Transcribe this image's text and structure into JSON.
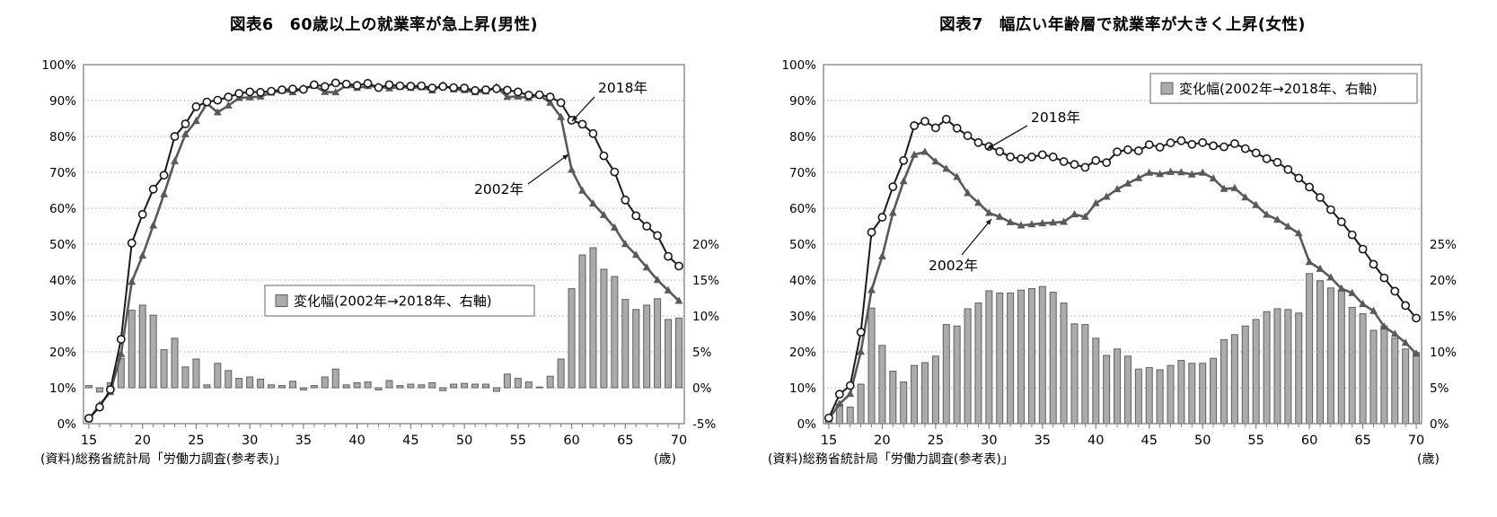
{
  "colors": {
    "line_2018": "#1a1a1a",
    "marker_2018_fill": "#ffffff",
    "line_2002": "#595959",
    "bar_fill": "#ababab",
    "bar_border": "#5f5f5f",
    "grid": "#a6a6a6",
    "plot_border": "#7f7f7f"
  },
  "charts": [
    {
      "id": "men",
      "title": "図表6　60歳以上の就業率が急上昇(男性)",
      "source": "(資料)総務省統計局「労働力調査(参考表)」",
      "x_unit": "(歳)",
      "legend": {
        "label": "変化幅(2002年→2018年、右軸)",
        "icon": "gray-square-swatch"
      },
      "annotations": [
        {
          "label": "2018年",
          "target_series": "2018年"
        },
        {
          "label": "2002年",
          "target_series": "2002年"
        }
      ],
      "axes": {
        "left": {
          "values": [
            0,
            10,
            20,
            30,
            40,
            50,
            60,
            70,
            80,
            90,
            100
          ],
          "labels": [
            "0%",
            "10%",
            "20%",
            "30%",
            "40%",
            "50%",
            "60%",
            "70%",
            "80%",
            "90%",
            "100%"
          ]
        },
        "right": {
          "values": [
            -5,
            0,
            5,
            10,
            15,
            20
          ],
          "labels": [
            "-5%",
            "0%",
            "5%",
            "10%",
            "15%",
            "20%"
          ]
        },
        "x": {
          "ticks": [
            15,
            20,
            25,
            30,
            35,
            40,
            45,
            50,
            55,
            60,
            65,
            70
          ]
        }
      },
      "chart_data": {
        "type": "line+bar",
        "x_label": "age",
        "x_min": 15,
        "x_max": 70,
        "x": [
          15,
          16,
          17,
          18,
          19,
          20,
          21,
          22,
          23,
          24,
          25,
          26,
          27,
          28,
          29,
          30,
          31,
          32,
          33,
          34,
          35,
          36,
          37,
          38,
          39,
          40,
          41,
          42,
          43,
          44,
          45,
          46,
          47,
          48,
          49,
          50,
          51,
          52,
          53,
          54,
          55,
          56,
          57,
          58,
          59,
          60,
          61,
          62,
          63,
          64,
          65,
          66,
          67,
          68,
          69,
          70
        ],
        "left_axis_range": [
          0,
          100
        ],
        "right_axis_range": [
          -5,
          20
        ],
        "grid": "dotted-horizontal",
        "legend_position": "inside-middle-left",
        "series": [
          {
            "name": "2018年",
            "type": "line",
            "marker": "circle",
            "axis": "left",
            "values": [
              1.5,
              4.6,
              9.5,
              23.5,
              50.3,
              58.3,
              65.3,
              69.2,
              80.0,
              83.5,
              88.3,
              89.6,
              90.1,
              91.0,
              92.0,
              92.4,
              92.3,
              92.6,
              93.0,
              93.2,
              93.1,
              94.4,
              93.9,
              94.9,
              94.6,
              94.2,
              94.8,
              93.6,
              94.4,
              94.1,
              94.0,
              94.1,
              93.5,
              93.9,
              93.6,
              93.5,
              92.8,
              93.0,
              93.3,
              92.9,
              92.4,
              91.5,
              91.6,
              91.0,
              89.4,
              84.5,
              83.4,
              80.8,
              74.6,
              70.1,
              62.3,
              57.9,
              55.0,
              52.4,
              46.6,
              43.9
            ]
          },
          {
            "name": "2002年",
            "type": "line",
            "marker": "triangle",
            "axis": "left",
            "values": [
              1.2,
              5.2,
              8.8,
              19.4,
              39.5,
              46.8,
              55.2,
              63.9,
              73.1,
              80.6,
              84.3,
              89.2,
              86.7,
              88.6,
              90.7,
              90.9,
              91.1,
              92.2,
              92.7,
              92.3,
              93.4,
              94.1,
              92.4,
              92.3,
              94.2,
              93.5,
              94.0,
              93.9,
              93.4,
              93.8,
              93.5,
              93.7,
              92.8,
              94.3,
              93.1,
              92.9,
              92.3,
              92.5,
              93.8,
              91.0,
              91.1,
              90.7,
              91.5,
              89.4,
              85.4,
              70.7,
              64.9,
              61.3,
              58.1,
              54.6,
              50.0,
              47.0,
              43.5,
              40.0,
              37.1,
              34.2
            ]
          },
          {
            "name": "変化幅(2002年→2018年、右軸)",
            "type": "bar",
            "axis": "right",
            "values": [
              0.3,
              -0.6,
              0.7,
              4.1,
              10.8,
              11.5,
              10.1,
              5.3,
              6.9,
              2.9,
              4.0,
              0.4,
              3.4,
              2.4,
              1.3,
              1.5,
              1.2,
              0.4,
              0.3,
              0.9,
              -0.3,
              0.3,
              1.5,
              2.6,
              0.4,
              0.7,
              0.8,
              -0.3,
              1.0,
              0.3,
              0.5,
              0.4,
              0.7,
              -0.4,
              0.5,
              0.6,
              0.5,
              0.5,
              -0.5,
              1.9,
              1.3,
              0.8,
              0.1,
              1.6,
              4.0,
              13.8,
              18.5,
              19.5,
              16.5,
              15.5,
              12.3,
              10.9,
              11.5,
              12.4,
              9.5,
              9.7
            ]
          }
        ]
      }
    },
    {
      "id": "women",
      "title": "図表7　幅広い年齢層で就業率が大きく上昇(女性)",
      "source": "(資料)総務省統計局「労働力調査(参考表)」",
      "x_unit": "(歳)",
      "legend": {
        "label": "変化幅(2002年→2018年、右軸)",
        "icon": "gray-square-swatch"
      },
      "annotations": [
        {
          "label": "2018年",
          "target_series": "2018年"
        },
        {
          "label": "2002年",
          "target_series": "2002年"
        }
      ],
      "axes": {
        "left": {
          "values": [
            0,
            10,
            20,
            30,
            40,
            50,
            60,
            70,
            80,
            90,
            100
          ],
          "labels": [
            "0%",
            "10%",
            "20%",
            "30%",
            "40%",
            "50%",
            "60%",
            "70%",
            "80%",
            "90%",
            "100%"
          ]
        },
        "right": {
          "values": [
            0,
            5,
            10,
            15,
            20,
            25
          ],
          "labels": [
            "0%",
            "5%",
            "10%",
            "15%",
            "20%",
            "25%"
          ]
        },
        "x": {
          "ticks": [
            15,
            20,
            25,
            30,
            35,
            40,
            45,
            50,
            55,
            60,
            65,
            70
          ]
        }
      },
      "chart_data": {
        "type": "line+bar",
        "x_label": "age",
        "x_min": 15,
        "x_max": 70,
        "x": [
          15,
          16,
          17,
          18,
          19,
          20,
          21,
          22,
          23,
          24,
          25,
          26,
          27,
          28,
          29,
          30,
          31,
          32,
          33,
          34,
          35,
          36,
          37,
          38,
          39,
          40,
          41,
          42,
          43,
          44,
          45,
          46,
          47,
          48,
          49,
          50,
          51,
          52,
          53,
          54,
          55,
          56,
          57,
          58,
          59,
          60,
          61,
          62,
          63,
          64,
          65,
          66,
          67,
          68,
          69,
          70
        ],
        "left_axis_range": [
          0,
          100
        ],
        "right_axis_range": [
          0,
          25
        ],
        "grid": "dotted-horizontal",
        "legend_position": "inside-top-right",
        "series": [
          {
            "name": "2018年",
            "type": "line",
            "marker": "circle",
            "axis": "left",
            "values": [
              1.6,
              8.2,
              10.6,
              25.5,
              53.3,
              57.5,
              66.0,
              73.3,
              83.0,
              84.2,
              82.4,
              84.8,
              82.3,
              80.2,
              78.3,
              77.2,
              75.8,
              74.3,
              73.8,
              74.3,
              74.9,
              74.3,
              73.0,
              72.2,
              71.4,
              73.3,
              72.7,
              75.7,
              76.3,
              76.0,
              77.7,
              77.0,
              78.2,
              78.8,
              77.8,
              78.3,
              77.4,
              77.1,
              78.0,
              76.6,
              75.4,
              73.8,
              72.8,
              70.8,
              68.4,
              65.9,
              63.0,
              59.6,
              56.2,
              52.6,
              48.6,
              44.4,
              40.6,
              36.9,
              32.9,
              29.4
            ]
          },
          {
            "name": "2002年",
            "type": "line",
            "marker": "triangle",
            "axis": "left",
            "values": [
              1.3,
              5.5,
              8.3,
              20.0,
              37.2,
              46.6,
              58.7,
              67.5,
              74.9,
              75.7,
              73.0,
              71.0,
              68.7,
              64.2,
              61.5,
              58.7,
              57.6,
              56.1,
              55.2,
              55.5,
              55.8,
              56.0,
              56.2,
              58.3,
              57.6,
              61.4,
              63.2,
              65.3,
              66.9,
              68.4,
              69.9,
              69.5,
              70.1,
              70.0,
              69.4,
              69.9,
              68.3,
              65.4,
              65.6,
              63.0,
              60.9,
              58.2,
              56.8,
              54.9,
              53.0,
              45.0,
              43.1,
              40.7,
              37.6,
              36.4,
              33.3,
              31.4,
              27.0,
              25.0,
              22.5,
              19.5
            ]
          },
          {
            "name": "変化幅(2002年→2018年、右軸)",
            "type": "bar",
            "axis": "right",
            "values": [
              0.3,
              2.7,
              2.3,
              5.5,
              16.1,
              10.9,
              7.3,
              5.8,
              8.1,
              8.5,
              9.4,
              13.8,
              13.6,
              16.0,
              16.8,
              18.5,
              18.2,
              18.2,
              18.6,
              18.8,
              19.1,
              18.3,
              16.8,
              13.9,
              13.8,
              11.9,
              9.5,
              10.4,
              9.4,
              7.6,
              7.8,
              7.5,
              8.1,
              8.8,
              8.4,
              8.4,
              9.1,
              11.7,
              12.4,
              13.6,
              14.5,
              15.6,
              16.0,
              15.9,
              15.4,
              20.9,
              19.9,
              18.9,
              18.6,
              16.2,
              15.3,
              13.0,
              13.6,
              11.9,
              10.4,
              9.9
            ]
          }
        ]
      }
    }
  ]
}
